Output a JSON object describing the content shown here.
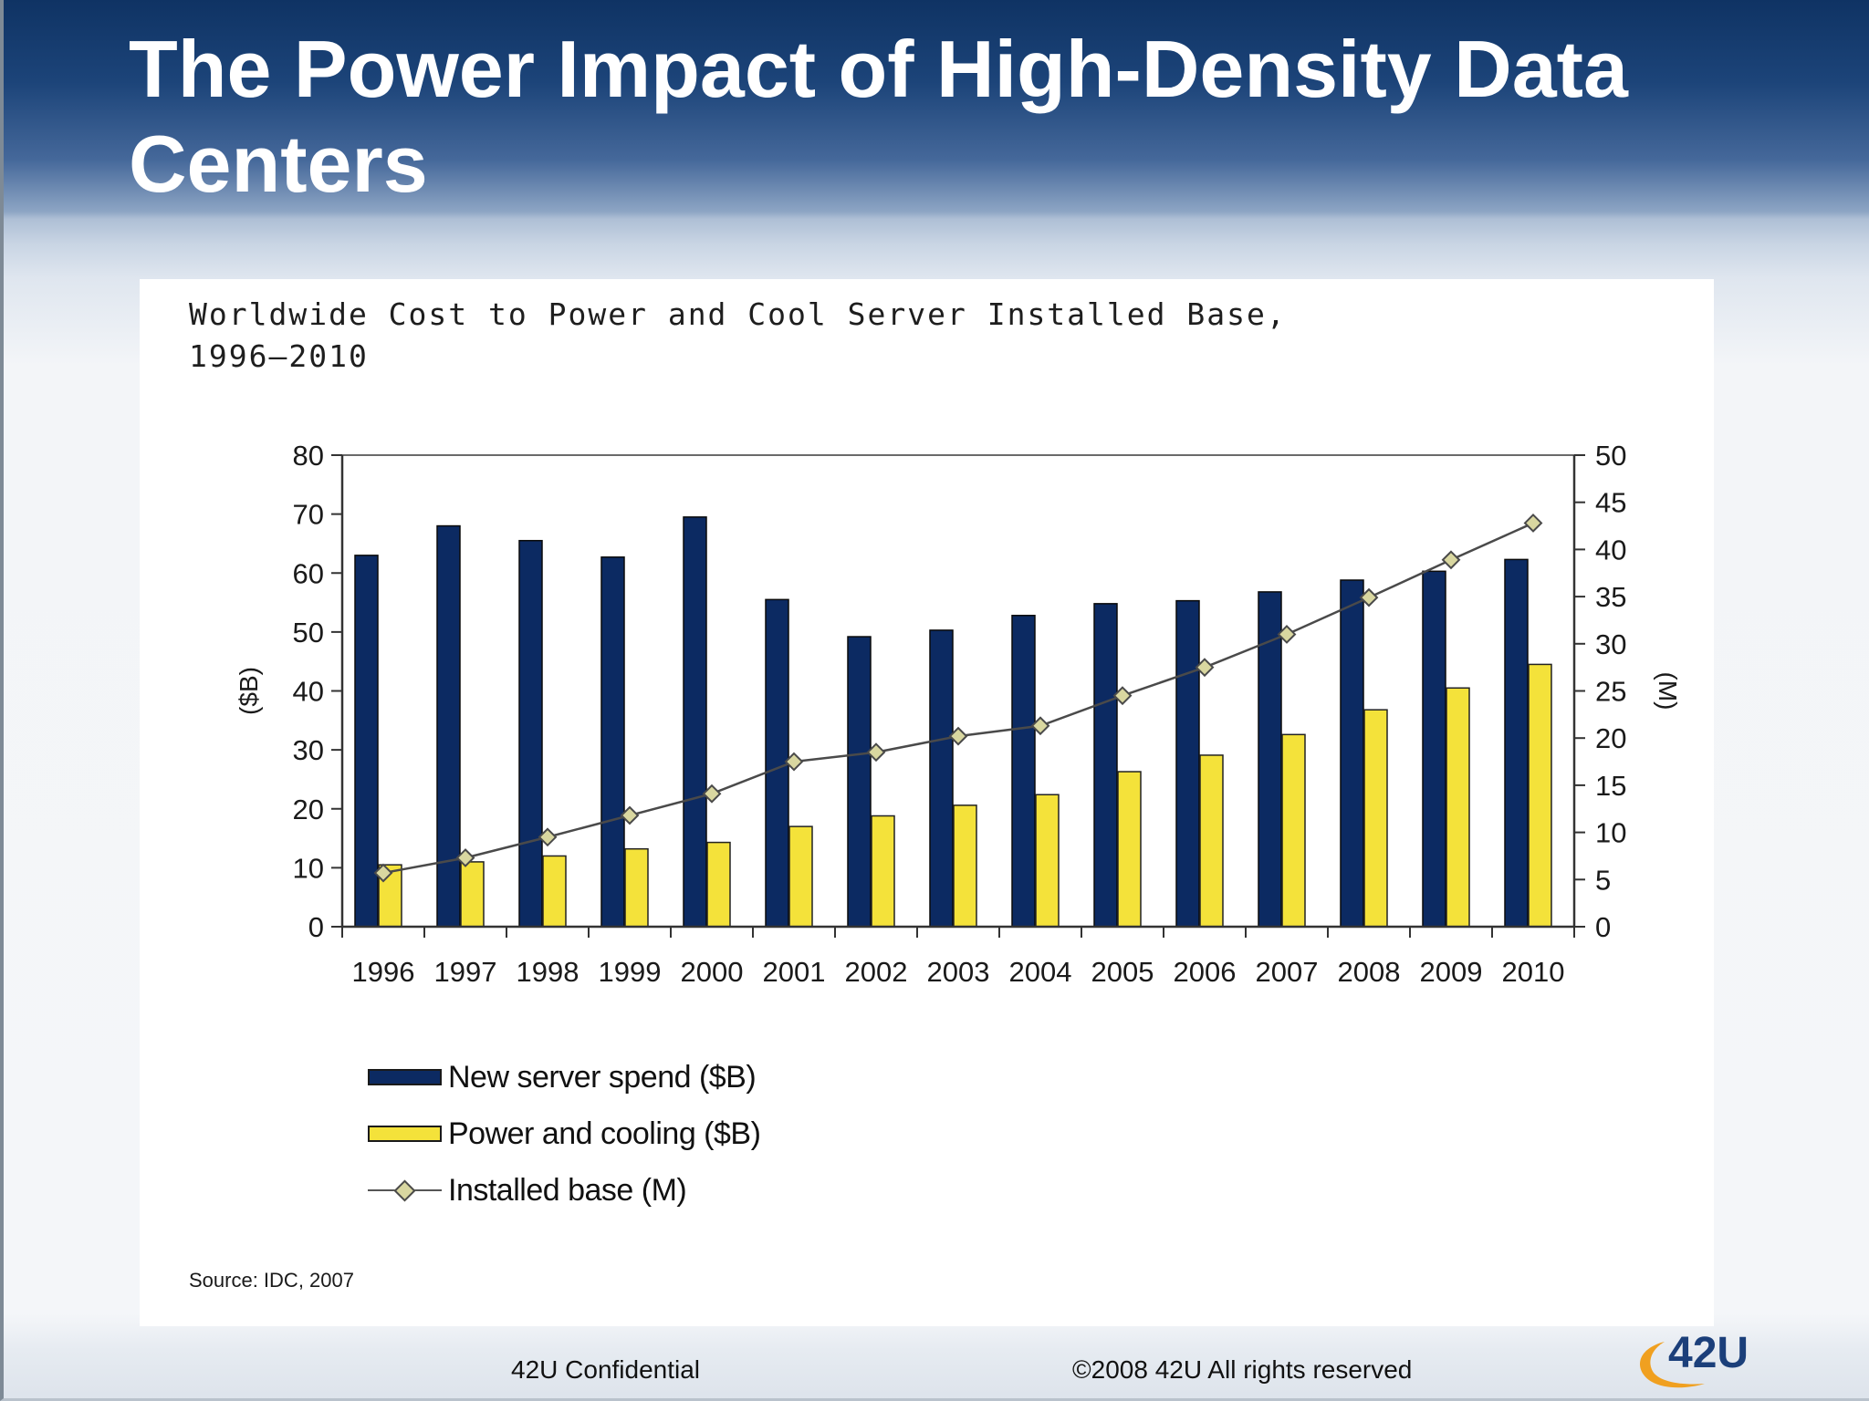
{
  "slide": {
    "title": "The Power Impact of High-Density Data Centers"
  },
  "chart_data": {
    "type": "bar",
    "title_lines": [
      "Worldwide Cost to Power and Cool Server Installed Base,",
      "1996–2010"
    ],
    "categories": [
      "1996",
      "1997",
      "1998",
      "1999",
      "2000",
      "2001",
      "2002",
      "2003",
      "2004",
      "2005",
      "2006",
      "2007",
      "2008",
      "2009",
      "2010"
    ],
    "series": [
      {
        "name": "New server spend ($B)",
        "kind": "bar",
        "axis": "left",
        "color": "#0c2a62",
        "values": [
          63,
          68,
          65.5,
          62.7,
          69.5,
          55.5,
          49.2,
          50.3,
          52.8,
          54.8,
          55.3,
          56.8,
          58.8,
          60.3,
          62.3
        ]
      },
      {
        "name": "Power and cooling ($B)",
        "kind": "bar",
        "axis": "left",
        "color": "#f4e23a",
        "values": [
          10.5,
          11,
          12,
          13.2,
          14.3,
          17,
          18.8,
          20.6,
          22.4,
          26.3,
          29.1,
          32.6,
          36.8,
          40.5,
          44.5
        ]
      },
      {
        "name": "Installed base (M)",
        "kind": "line",
        "axis": "right",
        "color": "#4a4a4a",
        "marker_color": "#d9d7a0",
        "values": [
          5.7,
          7.3,
          9.5,
          11.8,
          14.1,
          17.5,
          18.5,
          20.2,
          21.3,
          24.5,
          27.5,
          31,
          34.9,
          38.9,
          42.8
        ]
      }
    ],
    "y_left": {
      "label": "($B)",
      "ylim": [
        0,
        80
      ],
      "ticks": [
        "0",
        "10",
        "20",
        "30",
        "40",
        "50",
        "60",
        "70",
        "80"
      ]
    },
    "y_right": {
      "label": "(M)",
      "ylim": [
        0,
        50
      ],
      "ticks": [
        "0",
        "5",
        "10",
        "15",
        "20",
        "25",
        "30",
        "35",
        "40",
        "45",
        "50"
      ]
    },
    "grid": false,
    "legend_position": "bottom-left",
    "source": "Source: IDC, 2007"
  },
  "footer": {
    "confidential": "42U Confidential",
    "copyright": "©2008 42U All rights reserved",
    "logo_text": "42U",
    "logo_color": "#1b3f7a",
    "logo_swoosh_color": "#f0a020"
  }
}
